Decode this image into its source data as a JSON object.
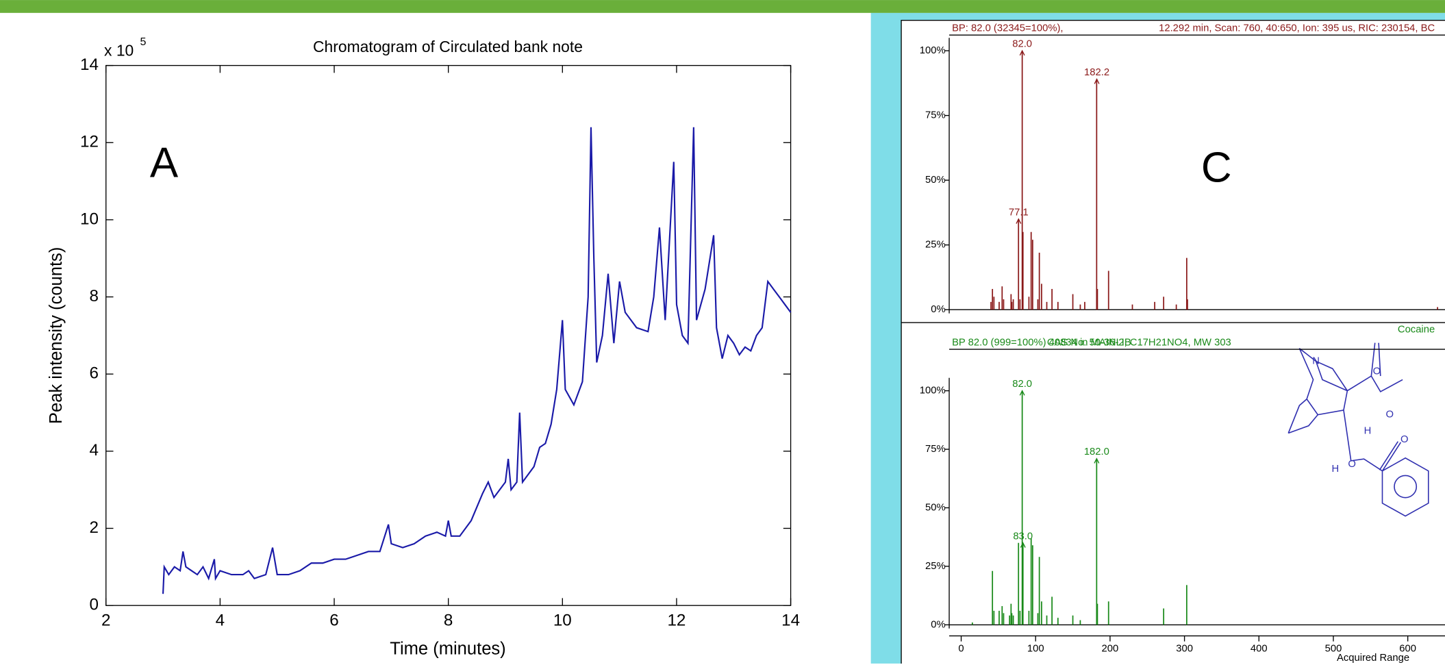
{
  "chart_data": [
    {
      "type": "line",
      "title": "Chromatogram of Circulated bank note",
      "annotation": "A",
      "xlabel": "Time (minutes)",
      "ylabel": "Peak intensity (counts)",
      "y_scale_label": "x 10",
      "y_scale_exponent": "5",
      "x": [
        3.0,
        3.02,
        3.1,
        3.2,
        3.3,
        3.35,
        3.4,
        3.5,
        3.6,
        3.7,
        3.8,
        3.9,
        3.92,
        4.0,
        4.2,
        4.4,
        4.5,
        4.6,
        4.8,
        4.92,
        5.0,
        5.2,
        5.4,
        5.6,
        5.8,
        6.0,
        6.2,
        6.4,
        6.6,
        6.8,
        6.95,
        7.0,
        7.2,
        7.4,
        7.6,
        7.8,
        7.95,
        8.0,
        8.05,
        8.2,
        8.4,
        8.6,
        8.7,
        8.8,
        9.0,
        9.05,
        9.1,
        9.2,
        9.25,
        9.3,
        9.5,
        9.6,
        9.7,
        9.8,
        9.9,
        10.0,
        10.05,
        10.2,
        10.35,
        10.45,
        10.5,
        10.55,
        10.6,
        10.7,
        10.8,
        10.9,
        11.0,
        11.1,
        11.3,
        11.5,
        11.6,
        11.7,
        11.8,
        11.95,
        12.0,
        12.1,
        12.2,
        12.3,
        12.35,
        12.5,
        12.65,
        12.7,
        12.8,
        12.9,
        13.0,
        13.1,
        13.2,
        13.3,
        13.4,
        13.5,
        13.6,
        13.7,
        13.8,
        13.9,
        14.0
      ],
      "values": [
        0.3,
        1.0,
        0.8,
        1.0,
        0.9,
        1.4,
        1.0,
        0.9,
        0.8,
        1.0,
        0.7,
        1.2,
        0.7,
        0.9,
        0.8,
        0.8,
        0.9,
        0.7,
        0.8,
        1.5,
        0.8,
        0.8,
        0.9,
        1.1,
        1.1,
        1.2,
        1.2,
        1.3,
        1.4,
        1.4,
        2.1,
        1.6,
        1.5,
        1.6,
        1.8,
        1.9,
        1.8,
        2.2,
        1.8,
        1.8,
        2.2,
        2.9,
        3.2,
        2.8,
        3.2,
        3.8,
        3.0,
        3.2,
        5.0,
        3.2,
        3.6,
        4.1,
        4.2,
        4.7,
        5.6,
        7.4,
        5.6,
        5.2,
        5.8,
        8.0,
        12.4,
        9.0,
        6.3,
        7.0,
        8.6,
        6.8,
        8.4,
        7.6,
        7.2,
        7.1,
        8.0,
        9.8,
        7.4,
        11.5,
        7.8,
        7.0,
        6.8,
        12.4,
        7.4,
        8.2,
        9.6,
        7.2,
        6.4,
        7.0,
        6.8,
        6.5,
        6.7,
        6.6,
        7.0,
        7.2,
        8.4,
        8.2,
        8.0,
        7.8,
        7.6
      ],
      "color": "#1a1aa8",
      "xlim": [
        2,
        14
      ],
      "xticks": [
        2,
        4,
        6,
        8,
        10,
        12,
        14
      ],
      "ylim": [
        0,
        14
      ],
      "yticks": [
        0,
        2,
        4,
        6,
        8,
        10,
        12,
        14
      ]
    },
    {
      "type": "bar",
      "annotation": "C",
      "header_left": "BP: 82.0 (32345=100%),",
      "header_right": "12.292 min, Scan: 760, 40:650, Ion: 395 us, RIC: 230154, BC",
      "x": [
        40,
        42,
        44,
        51,
        55,
        57,
        67,
        68,
        70,
        77,
        79,
        82,
        83,
        91,
        94,
        96,
        103,
        105,
        108,
        115,
        122,
        130,
        150,
        160,
        166,
        182,
        183,
        198,
        230,
        260,
        272,
        289,
        303,
        304,
        640
      ],
      "values": [
        3,
        8,
        5,
        3,
        9,
        4,
        6,
        3,
        4,
        35,
        4,
        100,
        30,
        5,
        30,
        27,
        4,
        22,
        10,
        3,
        8,
        3,
        6,
        2,
        3,
        89,
        8,
        15,
        2,
        3,
        5,
        2,
        20,
        4,
        1
      ],
      "color": "#8b1a1a",
      "xlim": [
        0,
        650
      ],
      "ylim": [
        0,
        100
      ],
      "yticks": [
        {
          "value": 0,
          "label": "0%"
        },
        {
          "value": 25,
          "label": "25%"
        },
        {
          "value": 50,
          "label": "50%"
        },
        {
          "value": 75,
          "label": "75%"
        },
        {
          "value": 100,
          "label": "100%"
        }
      ],
      "peak_labels": [
        {
          "value": 82,
          "label": "82.0",
          "y": 100
        },
        {
          "value": 182.2,
          "label": "182.2",
          "y": 89
        },
        {
          "value": 77.1,
          "label": "77.1",
          "y": 35
        }
      ]
    },
    {
      "type": "bar",
      "name": "Cocaine",
      "header_left": "BP 82.0 (999=100%) 40834 in MAINLIB",
      "header_right": "CAS No. 50-36-2, C17H21NO4, MW 303",
      "xlabel": "Acquired Range",
      "x": [
        15,
        42,
        44,
        51,
        55,
        57,
        65,
        67,
        68,
        70,
        77,
        79,
        82,
        83,
        91,
        94,
        96,
        103,
        105,
        108,
        115,
        122,
        130,
        150,
        160,
        182,
        183,
        198,
        272,
        303
      ],
      "values": [
        1,
        23,
        6,
        6,
        8,
        5,
        4,
        9,
        5,
        4,
        35,
        6,
        100,
        35,
        6,
        37,
        34,
        5,
        29,
        10,
        4,
        12,
        3,
        4,
        2,
        71,
        9,
        10,
        7,
        17
      ],
      "color": "#1a8a1a",
      "xlim": [
        0,
        650
      ],
      "xticks": [
        0,
        100,
        200,
        300,
        400,
        500,
        600
      ],
      "ylim": [
        0,
        100
      ],
      "yticks": [
        {
          "value": 0,
          "label": "0%"
        },
        {
          "value": 25,
          "label": "25%"
        },
        {
          "value": 50,
          "label": "50%"
        },
        {
          "value": 75,
          "label": "75%"
        },
        {
          "value": 100,
          "label": "100%"
        }
      ],
      "peak_labels": [
        {
          "value": 82,
          "label": "82.0",
          "y": 100
        },
        {
          "value": 182,
          "label": "182.0",
          "y": 71
        },
        {
          "value": 83,
          "label": "83.0",
          "y": 35
        }
      ],
      "structure_labels": [
        "N",
        "O",
        "O",
        "H",
        "O",
        "H",
        "O"
      ]
    }
  ]
}
